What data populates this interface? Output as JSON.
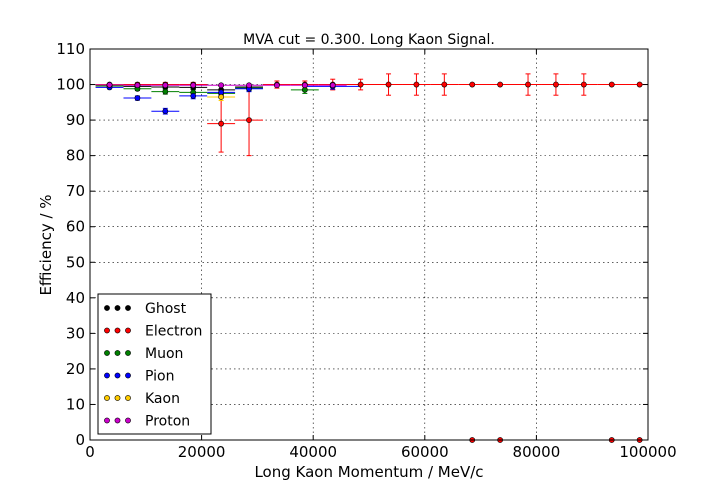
{
  "chart_data": {
    "type": "scatter",
    "title": "MVA cut = 0.300. Long Kaon Signal.",
    "xlabel": "Long Kaon Momentum / MeV/c",
    "ylabel": "Efficiency / %",
    "xlim": [
      0,
      100000
    ],
    "ylim": [
      0,
      110
    ],
    "xticks": [
      0,
      20000,
      40000,
      60000,
      80000,
      100000
    ],
    "xtick_labels": [
      "0",
      "20000",
      "40000",
      "60000",
      "80000",
      "100000"
    ],
    "yticks": [
      0,
      10,
      20,
      30,
      40,
      50,
      60,
      70,
      80,
      90,
      100,
      110
    ],
    "ytick_labels": [
      "0",
      "10",
      "20",
      "30",
      "40",
      "50",
      "60",
      "70",
      "80",
      "90",
      "100",
      "110"
    ],
    "grid": true,
    "legend_position": "lower-left",
    "series": [
      {
        "name": "Ghost",
        "color": "#000000",
        "points": [
          {
            "x": 3500,
            "y": 99.8,
            "xerr": 2500,
            "yerr": 0.3
          },
          {
            "x": 8500,
            "y": 99.5,
            "xerr": 2500,
            "yerr": 0.4
          },
          {
            "x": 13500,
            "y": 99.3,
            "xerr": 2500,
            "yerr": 0.5
          },
          {
            "x": 18500,
            "y": 99.2,
            "xerr": 2500,
            "yerr": 0.6
          },
          {
            "x": 23500,
            "y": 98.5,
            "xerr": 2500,
            "yerr": 1.0
          },
          {
            "x": 28500,
            "y": 99.3,
            "xerr": 2500,
            "yerr": 0.8
          }
        ]
      },
      {
        "name": "Electron",
        "color": "#ff0000",
        "points": [
          {
            "x": 3500,
            "y": 100,
            "xerr": 2500,
            "yerr": 0.3
          },
          {
            "x": 8500,
            "y": 100,
            "xerr": 2500,
            "yerr": 0.5
          },
          {
            "x": 13500,
            "y": 100,
            "xerr": 2500,
            "yerr": 0.6
          },
          {
            "x": 18500,
            "y": 100,
            "xerr": 2500,
            "yerr": 0.6
          },
          {
            "x": 23500,
            "y": 89,
            "xerr": 2500,
            "yerr": 8
          },
          {
            "x": 28500,
            "y": 90,
            "xerr": 2500,
            "yerr": 10
          },
          {
            "x": 33500,
            "y": 100,
            "xerr": 2500,
            "yerr": 1.0
          },
          {
            "x": 38500,
            "y": 100,
            "xerr": 2500,
            "yerr": 1.0
          },
          {
            "x": 43500,
            "y": 100,
            "xerr": 2500,
            "yerr": 1.5
          },
          {
            "x": 48500,
            "y": 100,
            "xerr": 2500,
            "yerr": 1.5
          },
          {
            "x": 53500,
            "y": 100,
            "xerr": 2500,
            "yerr": 3
          },
          {
            "x": 58500,
            "y": 100,
            "xerr": 2500,
            "yerr": 3
          },
          {
            "x": 63500,
            "y": 100,
            "xerr": 2500,
            "yerr": 3
          },
          {
            "x": 68500,
            "y": 100,
            "xerr": 2500,
            "yerr": 0.3
          },
          {
            "x": 73500,
            "y": 100,
            "xerr": 2500,
            "yerr": 0.3
          },
          {
            "x": 78500,
            "y": 100,
            "xerr": 2500,
            "yerr": 3
          },
          {
            "x": 83500,
            "y": 100,
            "xerr": 2500,
            "yerr": 3
          },
          {
            "x": 88500,
            "y": 100,
            "xerr": 2500,
            "yerr": 3
          },
          {
            "x": 93500,
            "y": 100,
            "xerr": 2500,
            "yerr": 0.3
          },
          {
            "x": 98500,
            "y": 100,
            "xerr": 2500,
            "yerr": 0.3
          },
          {
            "x": 68500,
            "y": 0,
            "xerr": 0,
            "yerr": 0
          },
          {
            "x": 73500,
            "y": 0,
            "xerr": 0,
            "yerr": 0
          },
          {
            "x": 93500,
            "y": 0,
            "xerr": 0,
            "yerr": 0
          },
          {
            "x": 98500,
            "y": 0,
            "xerr": 0,
            "yerr": 0
          }
        ]
      },
      {
        "name": "Muon",
        "color": "#008000",
        "points": [
          {
            "x": 3500,
            "y": 99.6,
            "xerr": 2500,
            "yerr": 0.3
          },
          {
            "x": 8500,
            "y": 98.8,
            "xerr": 2500,
            "yerr": 0.5
          },
          {
            "x": 13500,
            "y": 98.0,
            "xerr": 2500,
            "yerr": 0.7
          },
          {
            "x": 18500,
            "y": 97.8,
            "xerr": 2500,
            "yerr": 0.8
          },
          {
            "x": 23500,
            "y": 97.5,
            "xerr": 2500,
            "yerr": 1.0
          },
          {
            "x": 28500,
            "y": 99.0,
            "xerr": 2500,
            "yerr": 0.8
          },
          {
            "x": 38500,
            "y": 98.5,
            "xerr": 2500,
            "yerr": 1.0
          }
        ]
      },
      {
        "name": "Pion",
        "color": "#0000ff",
        "points": [
          {
            "x": 3500,
            "y": 99.2,
            "xerr": 2500,
            "yerr": 0.4
          },
          {
            "x": 8500,
            "y": 96.2,
            "xerr": 2500,
            "yerr": 0.6
          },
          {
            "x": 13500,
            "y": 92.5,
            "xerr": 2500,
            "yerr": 0.8
          },
          {
            "x": 18500,
            "y": 96.8,
            "xerr": 2500,
            "yerr": 0.8
          },
          {
            "x": 23500,
            "y": 97.8,
            "xerr": 2500,
            "yerr": 0.9
          },
          {
            "x": 28500,
            "y": 98.8,
            "xerr": 2500,
            "yerr": 0.8
          },
          {
            "x": 43500,
            "y": 99.5,
            "xerr": 5000,
            "yerr": 0.8
          }
        ]
      },
      {
        "name": "Kaon",
        "color": "#ffcc00",
        "points": [
          {
            "x": 3500,
            "y": 99.9,
            "xerr": 2500,
            "yerr": 0.2
          },
          {
            "x": 23500,
            "y": 96.5,
            "xerr": 2500,
            "yerr": 1.0
          }
        ]
      },
      {
        "name": "Proton",
        "color": "#cc00cc",
        "points": [
          {
            "x": 3500,
            "y": 99.9,
            "xerr": 2500,
            "yerr": 0.2
          },
          {
            "x": 8500,
            "y": 99.8,
            "xerr": 2500,
            "yerr": 0.3
          },
          {
            "x": 13500,
            "y": 99.8,
            "xerr": 2500,
            "yerr": 0.3
          },
          {
            "x": 18500,
            "y": 99.8,
            "xerr": 2500,
            "yerr": 0.3
          },
          {
            "x": 23500,
            "y": 99.8,
            "xerr": 2500,
            "yerr": 0.3
          },
          {
            "x": 28500,
            "y": 99.8,
            "xerr": 2500,
            "yerr": 0.3
          },
          {
            "x": 33500,
            "y": 99.8,
            "xerr": 2500,
            "yerr": 0.3
          },
          {
            "x": 38500,
            "y": 99.8,
            "xerr": 2500,
            "yerr": 0.3
          },
          {
            "x": 43500,
            "y": 99.8,
            "xerr": 2500,
            "yerr": 0.3
          }
        ]
      }
    ]
  }
}
